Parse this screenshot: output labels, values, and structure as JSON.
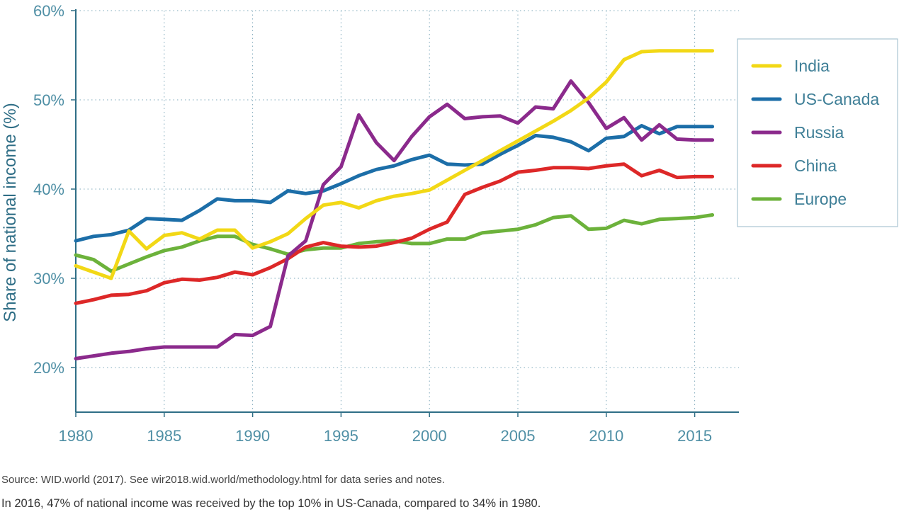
{
  "chart_data": {
    "type": "line",
    "title": "",
    "xlabel": "",
    "ylabel": "Share of national income (%)",
    "xlim": [
      1980,
      2017.5
    ],
    "ylim": [
      15,
      60
    ],
    "x_ticks": [
      1980,
      1985,
      1990,
      1995,
      2000,
      2005,
      2010,
      2015
    ],
    "y_ticks": [
      20,
      30,
      40,
      50,
      60
    ],
    "y_tick_labels": [
      "20%",
      "30%",
      "40%",
      "50%",
      "60%"
    ],
    "grid": true,
    "legend_position": "right",
    "x": [
      1980,
      1981,
      1982,
      1983,
      1984,
      1985,
      1986,
      1987,
      1988,
      1989,
      1990,
      1991,
      1992,
      1993,
      1994,
      1995,
      1996,
      1997,
      1998,
      1999,
      2000,
      2001,
      2002,
      2003,
      2004,
      2005,
      2006,
      2007,
      2008,
      2009,
      2010,
      2011,
      2012,
      2013,
      2014,
      2015,
      2016
    ],
    "series": [
      {
        "name": "India",
        "color": "#f2d816",
        "values": [
          31.4,
          30.7,
          30.0,
          35.3,
          33.3,
          34.8,
          35.1,
          34.4,
          35.4,
          35.4,
          33.4,
          34.1,
          35.0,
          36.7,
          38.2,
          38.5,
          37.9,
          38.7,
          39.2,
          39.5,
          39.9,
          41.0,
          42.1,
          43.2,
          44.3,
          45.4,
          46.5,
          47.6,
          48.8,
          50.2,
          52.0,
          54.5,
          55.4,
          55.5,
          55.5,
          55.5,
          55.5
        ]
      },
      {
        "name": "US-Canada",
        "color": "#1c6ea8",
        "values": [
          34.2,
          34.7,
          34.9,
          35.4,
          36.7,
          36.6,
          36.5,
          37.6,
          38.9,
          38.7,
          38.7,
          38.5,
          39.8,
          39.5,
          39.8,
          40.6,
          41.5,
          42.2,
          42.6,
          43.3,
          43.8,
          42.8,
          42.7,
          42.8,
          43.9,
          44.9,
          46.0,
          45.8,
          45.3,
          44.3,
          45.7,
          45.9,
          47.1,
          46.2,
          47.0,
          47.0,
          47.0
        ]
      },
      {
        "name": "Russia",
        "color": "#8b2a8c",
        "values": [
          21.0,
          21.3,
          21.6,
          21.8,
          22.1,
          22.3,
          22.3,
          22.3,
          22.3,
          23.7,
          23.6,
          24.6,
          32.5,
          34.2,
          40.5,
          42.5,
          48.3,
          45.2,
          43.2,
          45.9,
          48.1,
          49.5,
          47.9,
          48.1,
          48.2,
          47.4,
          49.2,
          49.0,
          52.1,
          49.7,
          46.8,
          48.0,
          45.5,
          47.2,
          45.6,
          45.5,
          45.5
        ]
      },
      {
        "name": "China",
        "color": "#dd2828",
        "values": [
          27.2,
          27.6,
          28.1,
          28.2,
          28.6,
          29.5,
          29.9,
          29.8,
          30.1,
          30.7,
          30.4,
          31.2,
          32.2,
          33.5,
          34.0,
          33.6,
          33.5,
          33.6,
          34.0,
          34.5,
          35.5,
          36.3,
          39.4,
          40.2,
          40.9,
          41.9,
          42.1,
          42.4,
          42.4,
          42.3,
          42.6,
          42.8,
          41.5,
          42.1,
          41.3,
          41.4,
          41.4
        ]
      },
      {
        "name": "Europe",
        "color": "#6cb23b",
        "values": [
          32.6,
          32.1,
          30.8,
          31.6,
          32.4,
          33.1,
          33.5,
          34.2,
          34.7,
          34.7,
          33.8,
          33.3,
          32.7,
          33.2,
          33.4,
          33.4,
          33.9,
          34.1,
          34.2,
          33.9,
          33.9,
          34.4,
          34.4,
          35.1,
          35.3,
          35.5,
          36.0,
          36.8,
          37.0,
          35.5,
          35.6,
          36.5,
          36.1,
          36.6,
          36.7,
          36.8,
          37.1
        ]
      }
    ]
  },
  "notes": {
    "source": "Source: WID.world (2017). See wir2018.wid.world/methodology.html for data series and notes.",
    "caption": "In 2016, 47% of national income was received by the top 10% in US-Canada, compared to 34% in 1980."
  }
}
